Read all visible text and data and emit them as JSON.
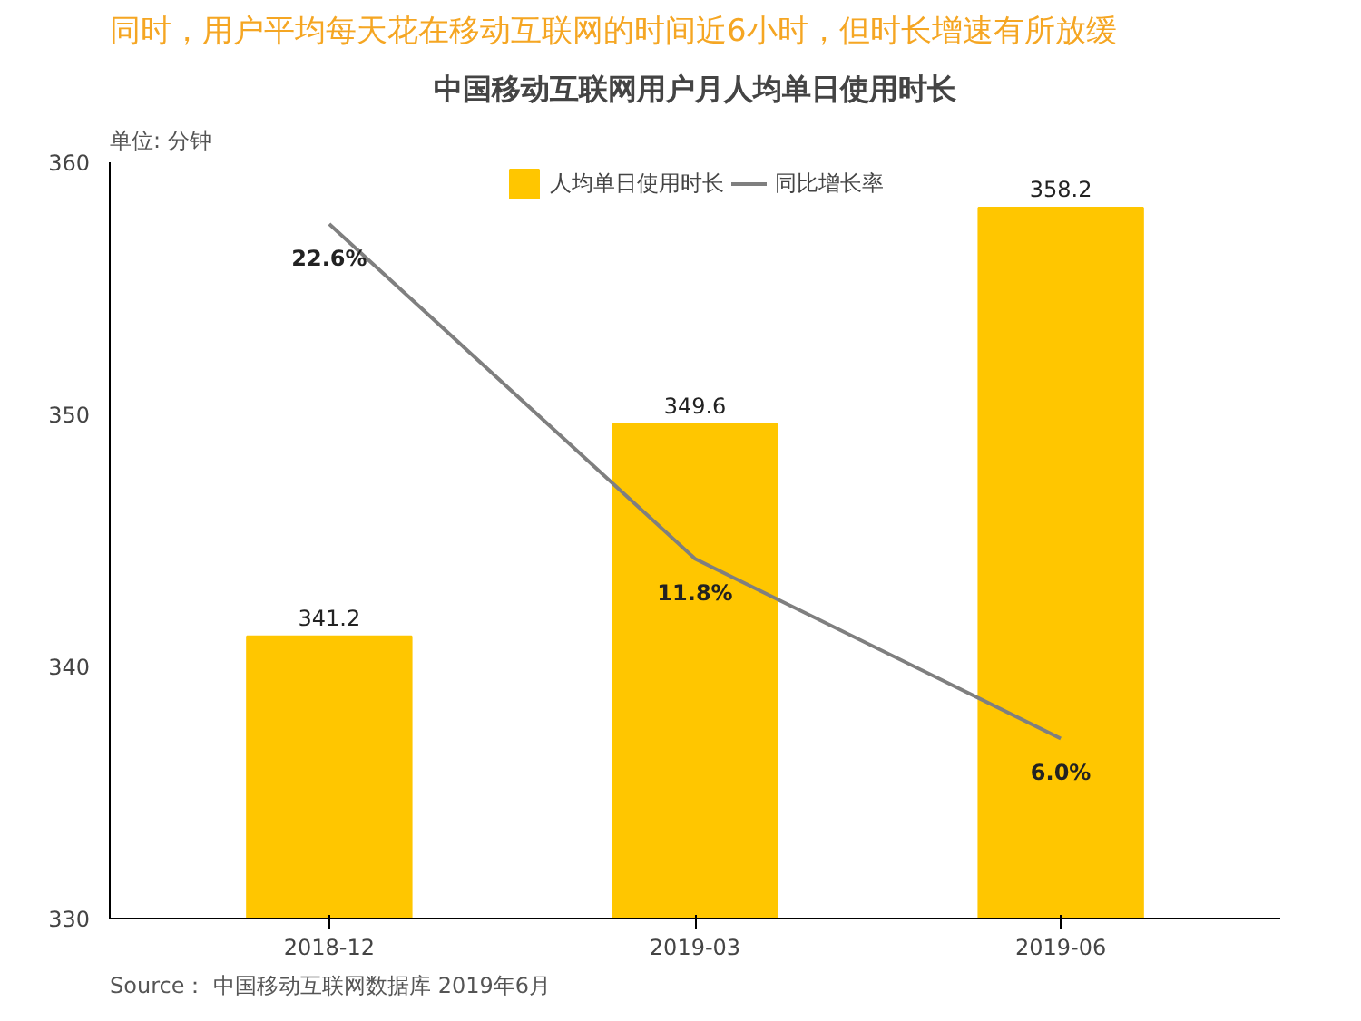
{
  "chart_data": {
    "type": "bar",
    "title": "中国移动互联网用户月人均单日使用时长",
    "subtitle": "同时，用户平均每天花在移动互联网的时间近6小时，但时长增速有所放缓",
    "ylabel": "单位: 分钟",
    "categories": [
      "2018-12",
      "2019-03",
      "2019-06"
    ],
    "series": [
      {
        "name": "人均单日使用时长",
        "color": "#ffc600",
        "values": [
          341.2,
          349.6,
          358.2
        ]
      },
      {
        "name": "同比增长率",
        "type": "line",
        "axis": "y2",
        "color": "#7f7f7f",
        "values": [
          22.6,
          11.8,
          6.0
        ],
        "value_labels": [
          "22.6%",
          "11.8%",
          "6.0%"
        ]
      }
    ],
    "ylim": [
      330,
      360
    ],
    "yticks": [
      330,
      340,
      350,
      360
    ],
    "data_labels": true,
    "grid": false,
    "legend": "top",
    "annotations": [
      "Source： 中国移动互联网数据库 2019年6月"
    ]
  }
}
